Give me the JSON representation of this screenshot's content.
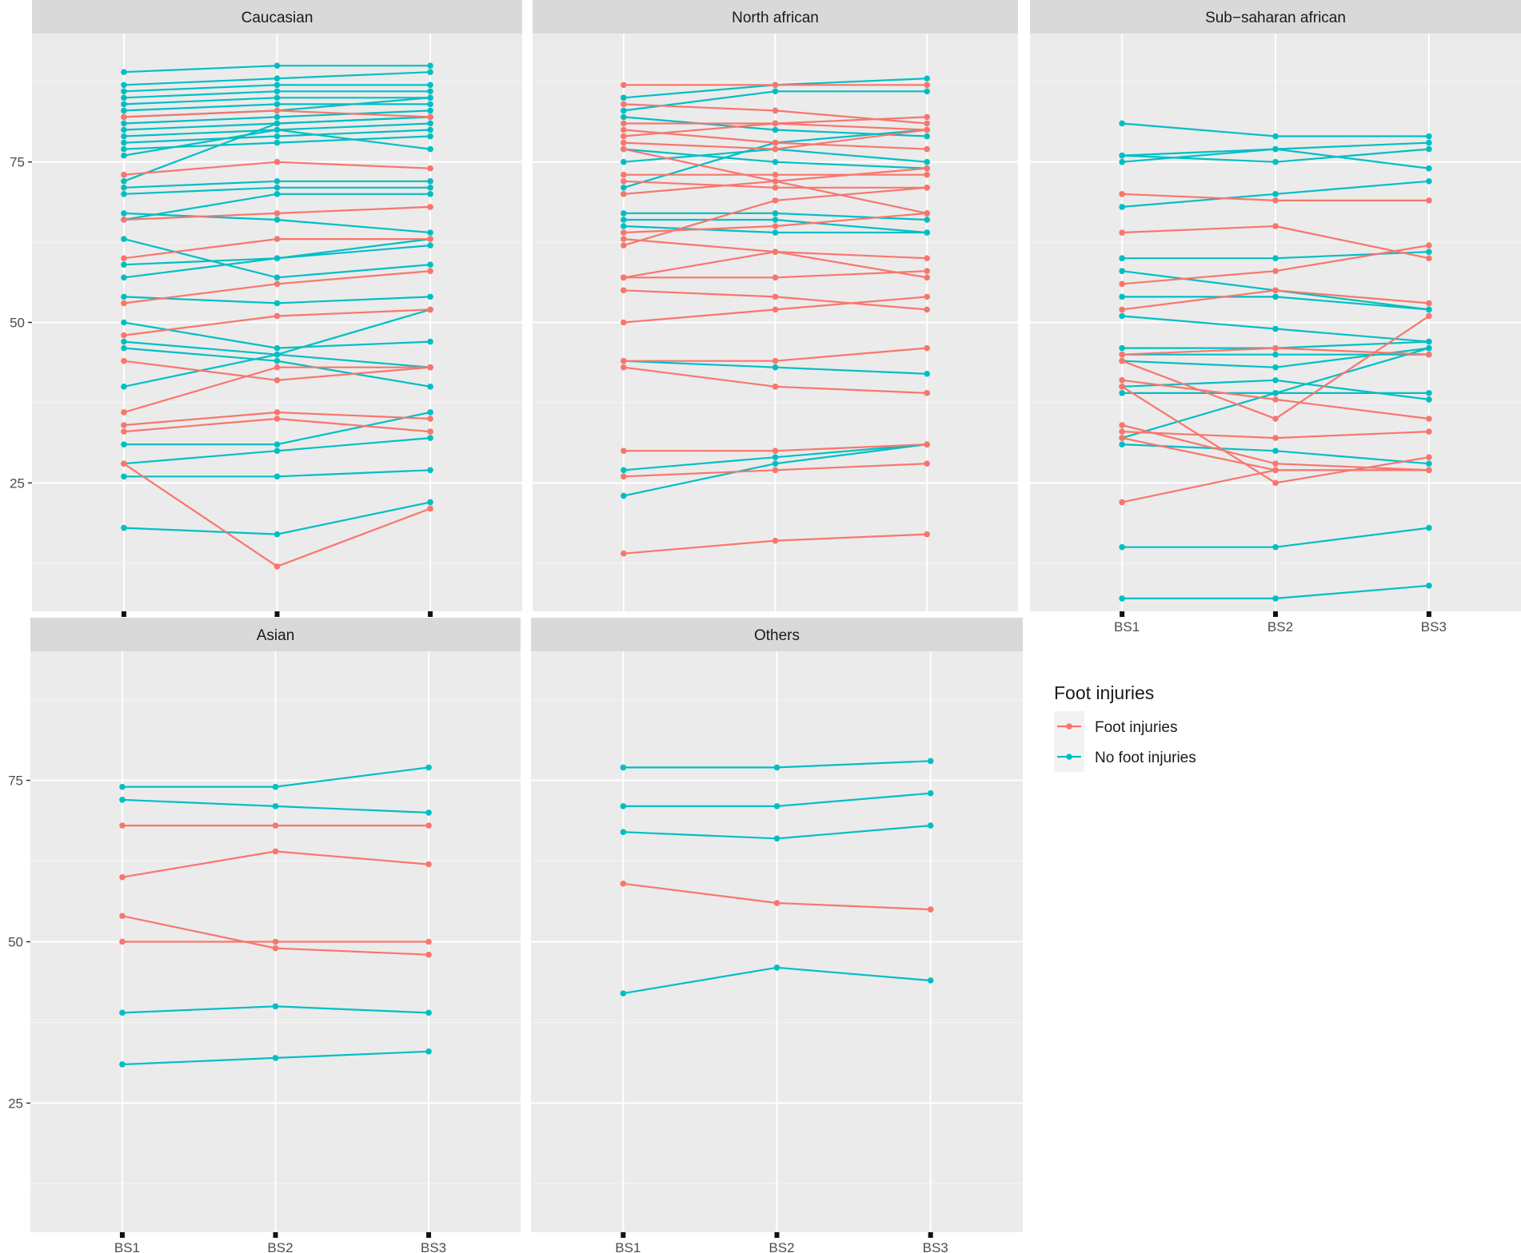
{
  "chart_data": {
    "type": "line",
    "x_categories": [
      "BS1",
      "BS2",
      "BS3"
    ],
    "y_ticks": [
      25,
      50,
      75
    ],
    "y_range": [
      5,
      95
    ],
    "legend": {
      "title": "Foot injuries",
      "entries": [
        {
          "label": "Foot injuries",
          "color": "#F8766D"
        },
        {
          "label": "No foot injuries",
          "color": "#00BFC4"
        }
      ],
      "position": "right"
    },
    "panels": [
      {
        "title": "Caucasian",
        "series": [
          {
            "group": "No foot injuries",
            "values": [
              89,
              90,
              90
            ]
          },
          {
            "group": "No foot injuries",
            "values": [
              87,
              88,
              89
            ]
          },
          {
            "group": "No foot injuries",
            "values": [
              86,
              87,
              87
            ]
          },
          {
            "group": "No foot injuries",
            "values": [
              85,
              86,
              86
            ]
          },
          {
            "group": "No foot injuries",
            "values": [
              84,
              85,
              85
            ]
          },
          {
            "group": "No foot injuries",
            "values": [
              83,
              84,
              84
            ]
          },
          {
            "group": "No foot injuries",
            "values": [
              82,
              83,
              85
            ]
          },
          {
            "group": "No foot injuries",
            "values": [
              81,
              82,
              83
            ]
          },
          {
            "group": "No foot injuries",
            "values": [
              80,
              81,
              82
            ]
          },
          {
            "group": "No foot injuries",
            "values": [
              79,
              80,
              81
            ]
          },
          {
            "group": "No foot injuries",
            "values": [
              78,
              79,
              80
            ]
          },
          {
            "group": "No foot injuries",
            "values": [
              77,
              78,
              79
            ]
          },
          {
            "group": "No foot injuries",
            "values": [
              76,
              80,
              77
            ]
          },
          {
            "group": "No foot injuries",
            "values": [
              72,
              81,
              82
            ]
          },
          {
            "group": "No foot injuries",
            "values": [
              71,
              72,
              72
            ]
          },
          {
            "group": "No foot injuries",
            "values": [
              70,
              71,
              71
            ]
          },
          {
            "group": "No foot injuries",
            "values": [
              67,
              66,
              64
            ]
          },
          {
            "group": "No foot injuries",
            "values": [
              66,
              70,
              70
            ]
          },
          {
            "group": "No foot injuries",
            "values": [
              63,
              57,
              59
            ]
          },
          {
            "group": "No foot injuries",
            "values": [
              59,
              60,
              63
            ]
          },
          {
            "group": "No foot injuries",
            "values": [
              57,
              60,
              62
            ]
          },
          {
            "group": "No foot injuries",
            "values": [
              54,
              53,
              54
            ]
          },
          {
            "group": "No foot injuries",
            "values": [
              50,
              46,
              47
            ]
          },
          {
            "group": "No foot injuries",
            "values": [
              47,
              45,
              43
            ]
          },
          {
            "group": "No foot injuries",
            "values": [
              46,
              44,
              40
            ]
          },
          {
            "group": "No foot injuries",
            "values": [
              40,
              45,
              52
            ]
          },
          {
            "group": "No foot injuries",
            "values": [
              31,
              31,
              36
            ]
          },
          {
            "group": "No foot injuries",
            "values": [
              28,
              30,
              32
            ]
          },
          {
            "group": "No foot injuries",
            "values": [
              26,
              26,
              27
            ]
          },
          {
            "group": "No foot injuries",
            "values": [
              18,
              17,
              22
            ]
          },
          {
            "group": "Foot injuries",
            "values": [
              82,
              83,
              82
            ]
          },
          {
            "group": "Foot injuries",
            "values": [
              73,
              75,
              74
            ]
          },
          {
            "group": "Foot injuries",
            "values": [
              66,
              67,
              68
            ]
          },
          {
            "group": "Foot injuries",
            "values": [
              60,
              63,
              63
            ]
          },
          {
            "group": "Foot injuries",
            "values": [
              53,
              56,
              58
            ]
          },
          {
            "group": "Foot injuries",
            "values": [
              48,
              51,
              52
            ]
          },
          {
            "group": "Foot injuries",
            "values": [
              44,
              41,
              43
            ]
          },
          {
            "group": "Foot injuries",
            "values": [
              36,
              43,
              43
            ]
          },
          {
            "group": "Foot injuries",
            "values": [
              34,
              36,
              35
            ]
          },
          {
            "group": "Foot injuries",
            "values": [
              33,
              35,
              33
            ]
          },
          {
            "group": "Foot injuries",
            "values": [
              28,
              12,
              21
            ]
          }
        ]
      },
      {
        "title": "North african",
        "series": [
          {
            "group": "No foot injuries",
            "values": [
              85,
              87,
              88
            ]
          },
          {
            "group": "No foot injuries",
            "values": [
              83,
              86,
              86
            ]
          },
          {
            "group": "No foot injuries",
            "values": [
              82,
              80,
              79
            ]
          },
          {
            "group": "No foot injuries",
            "values": [
              77,
              75,
              74
            ]
          },
          {
            "group": "No foot injuries",
            "values": [
              75,
              77,
              75
            ]
          },
          {
            "group": "No foot injuries",
            "values": [
              71,
              78,
              80
            ]
          },
          {
            "group": "No foot injuries",
            "values": [
              67,
              67,
              66
            ]
          },
          {
            "group": "No foot injuries",
            "values": [
              66,
              66,
              64
            ]
          },
          {
            "group": "No foot injuries",
            "values": [
              65,
              64,
              64
            ]
          },
          {
            "group": "No foot injuries",
            "values": [
              44,
              43,
              42
            ]
          },
          {
            "group": "No foot injuries",
            "values": [
              27,
              29,
              31
            ]
          },
          {
            "group": "No foot injuries",
            "values": [
              23,
              28,
              31
            ]
          },
          {
            "group": "Foot injuries",
            "values": [
              87,
              87,
              87
            ]
          },
          {
            "group": "Foot injuries",
            "values": [
              84,
              83,
              81
            ]
          },
          {
            "group": "Foot injuries",
            "values": [
              81,
              81,
              80
            ]
          },
          {
            "group": "Foot injuries",
            "values": [
              80,
              78,
              77
            ]
          },
          {
            "group": "Foot injuries",
            "values": [
              79,
              81,
              82
            ]
          },
          {
            "group": "Foot injuries",
            "values": [
              78,
              77,
              80
            ]
          },
          {
            "group": "Foot injuries",
            "values": [
              77,
              72,
              67
            ]
          },
          {
            "group": "Foot injuries",
            "values": [
              73,
              73,
              73
            ]
          },
          {
            "group": "Foot injuries",
            "values": [
              72,
              71,
              71
            ]
          },
          {
            "group": "Foot injuries",
            "values": [
              70,
              72,
              74
            ]
          },
          {
            "group": "Foot injuries",
            "values": [
              64,
              65,
              67
            ]
          },
          {
            "group": "Foot injuries",
            "values": [
              63,
              61,
              60
            ]
          },
          {
            "group": "Foot injuries",
            "values": [
              62,
              69,
              71
            ]
          },
          {
            "group": "Foot injuries",
            "values": [
              57,
              57,
              58
            ]
          },
          {
            "group": "Foot injuries",
            "values": [
              57,
              61,
              57
            ]
          },
          {
            "group": "Foot injuries",
            "values": [
              55,
              54,
              52
            ]
          },
          {
            "group": "Foot injuries",
            "values": [
              50,
              52,
              54
            ]
          },
          {
            "group": "Foot injuries",
            "values": [
              44,
              44,
              46
            ]
          },
          {
            "group": "Foot injuries",
            "values": [
              43,
              40,
              39
            ]
          },
          {
            "group": "Foot injuries",
            "values": [
              30,
              30,
              31
            ]
          },
          {
            "group": "Foot injuries",
            "values": [
              26,
              27,
              28
            ]
          },
          {
            "group": "Foot injuries",
            "values": [
              14,
              16,
              17
            ]
          }
        ]
      },
      {
        "title": "Sub−saharan african",
        "series": [
          {
            "group": "No foot injuries",
            "values": [
              81,
              79,
              79
            ]
          },
          {
            "group": "No foot injuries",
            "values": [
              76,
              77,
              78
            ]
          },
          {
            "group": "No foot injuries",
            "values": [
              76,
              75,
              77
            ]
          },
          {
            "group": "No foot injuries",
            "values": [
              75,
              77,
              74
            ]
          },
          {
            "group": "No foot injuries",
            "values": [
              68,
              70,
              72
            ]
          },
          {
            "group": "No foot injuries",
            "values": [
              60,
              60,
              61
            ]
          },
          {
            "group": "No foot injuries",
            "values": [
              58,
              55,
              52
            ]
          },
          {
            "group": "No foot injuries",
            "values": [
              54,
              54,
              52
            ]
          },
          {
            "group": "No foot injuries",
            "values": [
              51,
              49,
              47
            ]
          },
          {
            "group": "No foot injuries",
            "values": [
              46,
              46,
              47
            ]
          },
          {
            "group": "No foot injuries",
            "values": [
              45,
              45,
              45
            ]
          },
          {
            "group": "No foot injuries",
            "values": [
              44,
              43,
              46
            ]
          },
          {
            "group": "No foot injuries",
            "values": [
              40,
              41,
              38
            ]
          },
          {
            "group": "No foot injuries",
            "values": [
              39,
              39,
              39
            ]
          },
          {
            "group": "No foot injuries",
            "values": [
              32,
              39,
              46
            ]
          },
          {
            "group": "No foot injuries",
            "values": [
              31,
              30,
              28
            ]
          },
          {
            "group": "No foot injuries",
            "values": [
              15,
              15,
              18
            ]
          },
          {
            "group": "No foot injuries",
            "values": [
              7,
              7,
              9
            ]
          },
          {
            "group": "Foot injuries",
            "values": [
              70,
              69,
              69
            ]
          },
          {
            "group": "Foot injuries",
            "values": [
              64,
              65,
              60
            ]
          },
          {
            "group": "Foot injuries",
            "values": [
              56,
              58,
              62
            ]
          },
          {
            "group": "Foot injuries",
            "values": [
              52,
              55,
              53
            ]
          },
          {
            "group": "Foot injuries",
            "values": [
              45,
              46,
              45
            ]
          },
          {
            "group": "Foot injuries",
            "values": [
              44,
              35,
              51
            ]
          },
          {
            "group": "Foot injuries",
            "values": [
              41,
              38,
              35
            ]
          },
          {
            "group": "Foot injuries",
            "values": [
              40,
              25,
              29
            ]
          },
          {
            "group": "Foot injuries",
            "values": [
              34,
              28,
              27
            ]
          },
          {
            "group": "Foot injuries",
            "values": [
              33,
              32,
              33
            ]
          },
          {
            "group": "Foot injuries",
            "values": [
              32,
              27,
              27
            ]
          },
          {
            "group": "Foot injuries",
            "values": [
              22,
              27,
              27
            ]
          }
        ]
      },
      {
        "title": "Asian",
        "series": [
          {
            "group": "No foot injuries",
            "values": [
              74,
              74,
              77
            ]
          },
          {
            "group": "No foot injuries",
            "values": [
              72,
              71,
              70
            ]
          },
          {
            "group": "No foot injuries",
            "values": [
              39,
              40,
              39
            ]
          },
          {
            "group": "No foot injuries",
            "values": [
              31,
              32,
              33
            ]
          },
          {
            "group": "Foot injuries",
            "values": [
              68,
              68,
              68
            ]
          },
          {
            "group": "Foot injuries",
            "values": [
              60,
              64,
              62
            ]
          },
          {
            "group": "Foot injuries",
            "values": [
              54,
              49,
              48
            ]
          },
          {
            "group": "Foot injuries",
            "values": [
              50,
              50,
              50
            ]
          }
        ]
      },
      {
        "title": "Others",
        "series": [
          {
            "group": "No foot injuries",
            "values": [
              77,
              77,
              78
            ]
          },
          {
            "group": "No foot injuries",
            "values": [
              71,
              71,
              73
            ]
          },
          {
            "group": "No foot injuries",
            "values": [
              67,
              66,
              68
            ]
          },
          {
            "group": "No foot injuries",
            "values": [
              42,
              46,
              44
            ]
          },
          {
            "group": "Foot injuries",
            "values": [
              59,
              56,
              55
            ]
          }
        ]
      }
    ]
  }
}
